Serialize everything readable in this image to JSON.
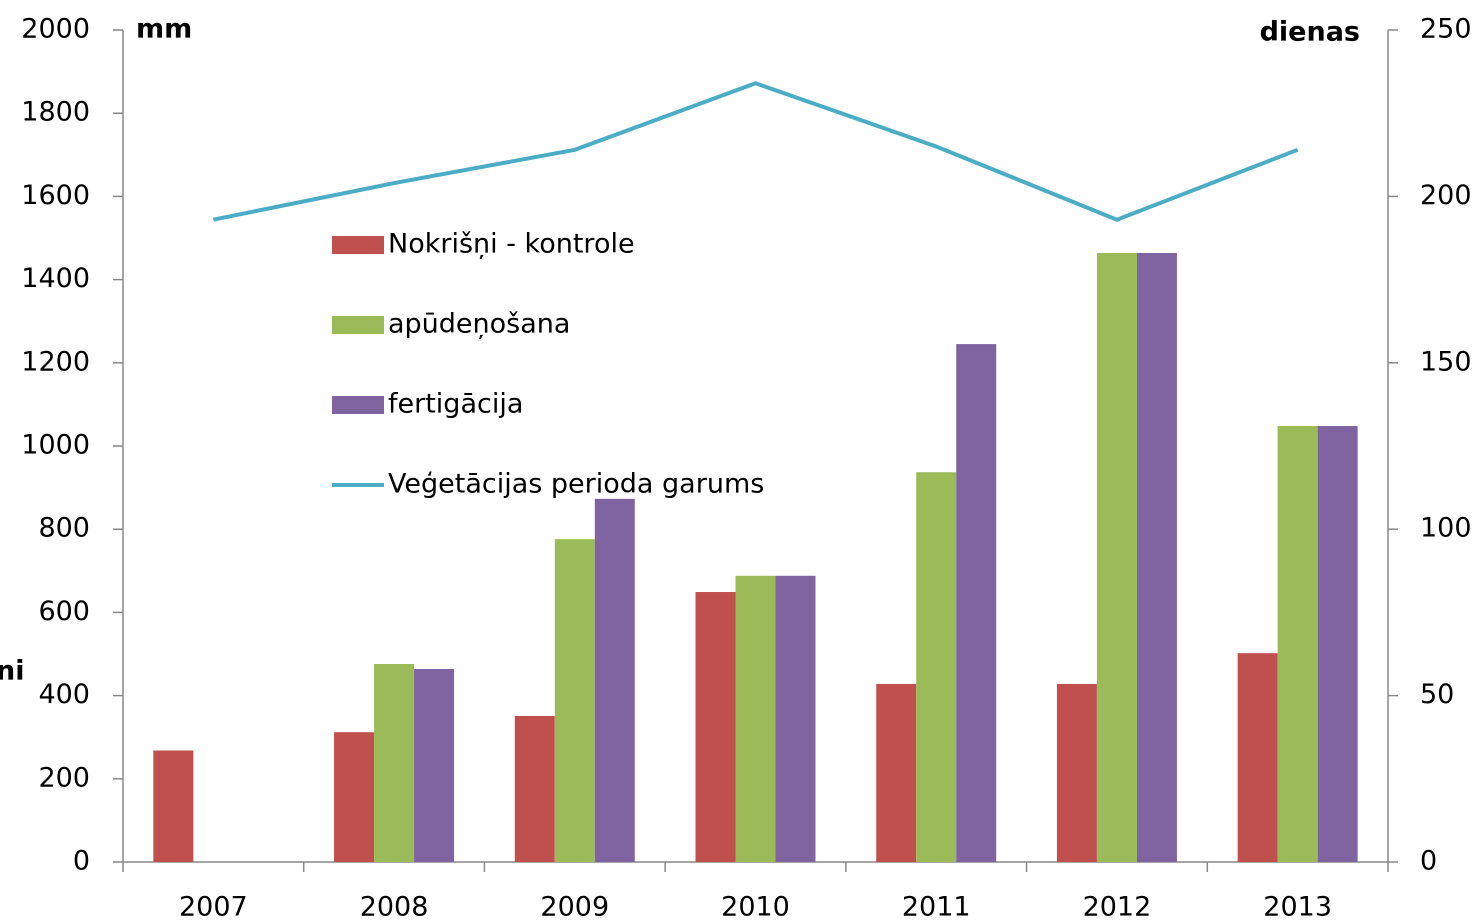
{
  "chart_data": {
    "type": "bar",
    "y_label": "mm",
    "y2_label": "dienas",
    "y_title": "ni",
    "categories": [
      "2007",
      "2008",
      "2009",
      "2010",
      "2011",
      "2012",
      "2013"
    ],
    "series": [
      {
        "name": "Nokrišņi - kontrole",
        "color": "#c0504d",
        "values": [
          268,
          312,
          351,
          649,
          428,
          428,
          502
        ]
      },
      {
        "name": "apūdeņošana",
        "color": "#9bbb59",
        "values": [
          null,
          476,
          776,
          688,
          937,
          1464,
          1048
        ]
      },
      {
        "name": "fertigācija",
        "color": "#8064a2",
        "values": [
          null,
          464,
          873,
          688,
          1245,
          1464,
          1048
        ]
      },
      {
        "name": "Veģetācijas perioda garums",
        "color": "#4bacc6",
        "type": "line",
        "axis": "y2",
        "values": [
          193,
          204,
          214,
          234,
          215,
          193,
          214
        ]
      }
    ],
    "ylim": [
      0,
      2000
    ],
    "yticks": [
      0,
      200,
      400,
      600,
      800,
      1000,
      1200,
      1400,
      1600,
      1800,
      2000
    ],
    "y2lim": [
      0,
      250
    ],
    "y2ticks": [
      0,
      50,
      100,
      150,
      200,
      250
    ],
    "grid": false,
    "legend": "upper center"
  }
}
